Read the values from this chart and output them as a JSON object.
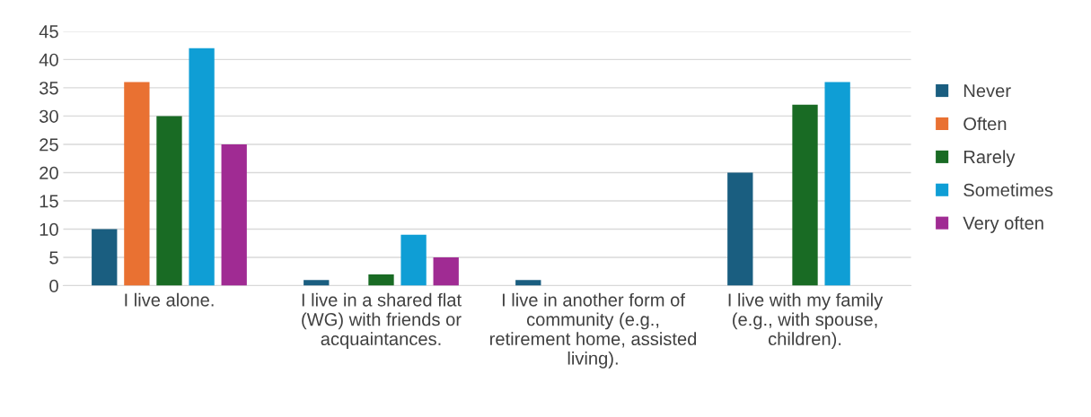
{
  "chart_data": {
    "type": "bar",
    "categories": [
      "I live alone.",
      "I live in a shared flat (WG) with friends or acquaintances.",
      "I live in another form of community (e.g., retirement home, assisted living).",
      "I live with my family (e.g., with spouse, children)."
    ],
    "series": [
      {
        "name": "Never",
        "color": "#1a5e80",
        "values": [
          10,
          1,
          1,
          20
        ]
      },
      {
        "name": "Often",
        "color": "#e97132",
        "values": [
          36,
          null,
          null,
          null
        ]
      },
      {
        "name": "Rarely",
        "color": "#196b24",
        "values": [
          30,
          2,
          null,
          32
        ]
      },
      {
        "name": "Sometimes",
        "color": "#0f9ed5",
        "values": [
          42,
          9,
          null,
          36
        ]
      },
      {
        "name": "Very often",
        "color": "#a02b93",
        "values": [
          25,
          5,
          null,
          null
        ]
      }
    ],
    "ylim": [
      0,
      45
    ],
    "yticks": [
      0,
      5,
      10,
      15,
      20,
      25,
      30,
      35,
      40,
      45
    ],
    "grid": "y",
    "legend": "right"
  }
}
